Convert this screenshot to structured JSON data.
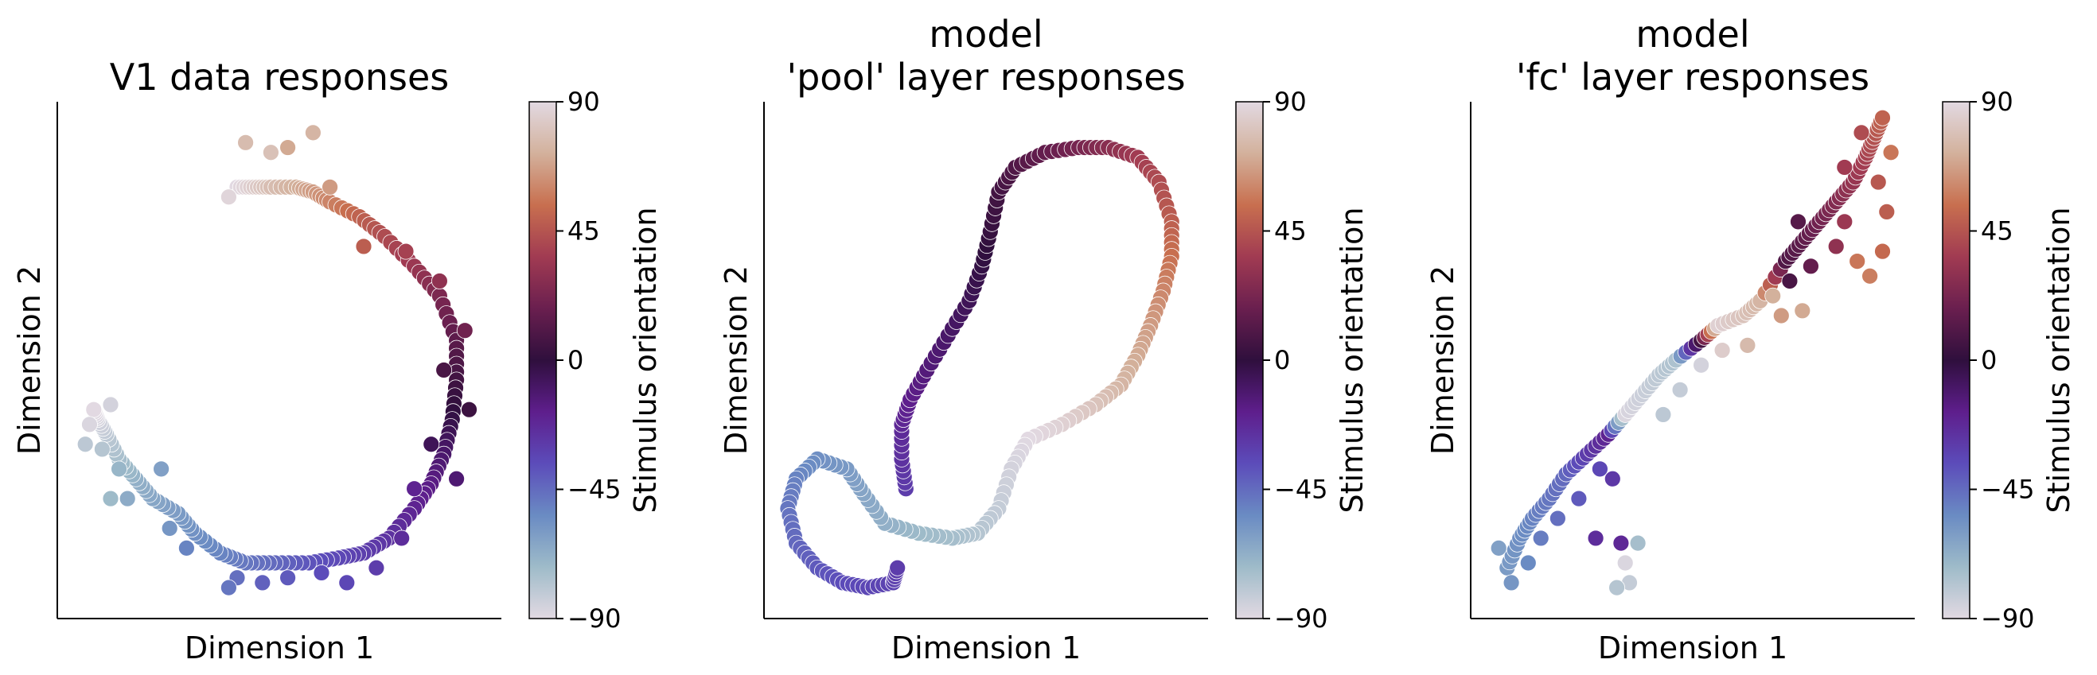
{
  "figure": {
    "colormap": [
      "#e2d9e2",
      "#9ebbc9",
      "#6a8bc3",
      "#5c4cba",
      "#5e1e8c",
      "#2f0f3d",
      "#6a1f4f",
      "#a13b52",
      "#c86f4f",
      "#d3b19c",
      "#e2d9e2"
    ],
    "marker_edge_color": "#ffffff"
  },
  "chart_data": [
    {
      "type": "scatter",
      "title": "V1 data responses",
      "xlabel": "Dimension 1",
      "ylabel": "Dimension 2",
      "xticks": [],
      "yticks": [],
      "colorbar": {
        "label": "Stimulus orientation",
        "ticks": [
          90,
          45,
          0,
          -45,
          -90
        ],
        "range": [
          -90,
          90
        ]
      },
      "xlim": [
        0,
        100
      ],
      "ylim": [
        0,
        100
      ],
      "path": [
        [
          40,
          85,
          90
        ],
        [
          44,
          85,
          84
        ],
        [
          48,
          85,
          78
        ],
        [
          54,
          85,
          72
        ],
        [
          58,
          84,
          66
        ],
        [
          62,
          82,
          60
        ],
        [
          69,
          79,
          50
        ],
        [
          75,
          75,
          42
        ],
        [
          82,
          69,
          34
        ],
        [
          88,
          63,
          24
        ],
        [
          92,
          54,
          14
        ],
        [
          92,
          46,
          6
        ],
        [
          91,
          38,
          -2
        ],
        [
          89,
          31,
          -10
        ],
        [
          86,
          25,
          -16
        ],
        [
          82,
          20,
          -20
        ],
        [
          76,
          14,
          -26
        ],
        [
          70,
          11,
          -30
        ],
        [
          64,
          10,
          -34
        ],
        [
          57,
          9,
          -38
        ],
        [
          49,
          9,
          -44
        ],
        [
          42,
          9,
          -48
        ],
        [
          36,
          11,
          -52
        ],
        [
          30,
          15,
          -56
        ],
        [
          26,
          19,
          -60
        ],
        [
          20,
          22,
          -64
        ],
        [
          16,
          26,
          -68
        ],
        [
          12,
          30,
          -74
        ],
        [
          9,
          35,
          -80
        ],
        [
          7,
          38,
          -86
        ],
        [
          6,
          40,
          -90
        ]
      ],
      "points": [
        [
          42,
          94,
          77
        ],
        [
          58,
          96,
          74
        ],
        [
          52,
          93,
          70
        ],
        [
          48,
          92,
          79
        ],
        [
          38,
          83,
          88
        ],
        [
          62,
          85,
          66
        ],
        [
          70,
          73,
          48
        ],
        [
          80,
          72,
          38
        ],
        [
          88,
          66,
          30
        ],
        [
          94,
          56,
          20
        ],
        [
          89,
          48,
          8
        ],
        [
          95,
          40,
          4
        ],
        [
          86,
          33,
          -6
        ],
        [
          92,
          26,
          -12
        ],
        [
          82,
          24,
          -20
        ],
        [
          79,
          14,
          -24
        ],
        [
          73,
          8,
          -30
        ],
        [
          66,
          5,
          -34
        ],
        [
          60,
          7,
          -36
        ],
        [
          52,
          6,
          -40
        ],
        [
          46,
          5,
          -42
        ],
        [
          40,
          6,
          -46
        ],
        [
          38,
          4,
          -48
        ],
        [
          28,
          12,
          -52
        ],
        [
          24,
          16,
          -58
        ],
        [
          14,
          22,
          -66
        ],
        [
          22,
          28,
          -62
        ],
        [
          12,
          28,
          -70
        ],
        [
          10,
          22,
          -72
        ],
        [
          5,
          37,
          -88
        ],
        [
          10,
          41,
          -86
        ],
        [
          4,
          33,
          -80
        ],
        [
          8,
          32,
          -78
        ]
      ]
    },
    {
      "type": "scatter",
      "title": "model\n'pool' layer responses",
      "xlabel": "Dimension 1",
      "ylabel": "Dimension 2",
      "xticks": [],
      "yticks": [],
      "colorbar": {
        "label": "Stimulus orientation",
        "ticks": [
          90,
          45,
          0,
          -45,
          -90
        ],
        "range": [
          -90,
          90
        ]
      },
      "xlim": [
        0,
        100
      ],
      "ylim": [
        0,
        100
      ],
      "path": [
        [
          31,
          24,
          -30
        ],
        [
          30,
          30,
          -26
        ],
        [
          30,
          37,
          -22
        ],
        [
          32,
          42,
          -18
        ],
        [
          36,
          48,
          -14
        ],
        [
          41,
          55,
          -10
        ],
        [
          46,
          62,
          -6
        ],
        [
          49,
          69,
          -2
        ],
        [
          51,
          76,
          2
        ],
        [
          53,
          84,
          6
        ],
        [
          57,
          89,
          10
        ],
        [
          64,
          92,
          16
        ],
        [
          72,
          93,
          22
        ],
        [
          79,
          93,
          28
        ],
        [
          86,
          91,
          36
        ],
        [
          91,
          86,
          42
        ],
        [
          94,
          78,
          48
        ],
        [
          94,
          71,
          54
        ],
        [
          92,
          64,
          60
        ],
        [
          89,
          57,
          66
        ],
        [
          86,
          51,
          70
        ],
        [
          82,
          45,
          74
        ],
        [
          76,
          41,
          80
        ],
        [
          68,
          37,
          86
        ],
        [
          60,
          34,
          90
        ],
        [
          56,
          28,
          -86
        ],
        [
          53,
          20,
          -82
        ],
        [
          48,
          15,
          -78
        ],
        [
          42,
          14,
          -74
        ],
        [
          34,
          15,
          -72
        ],
        [
          26,
          17,
          -68
        ],
        [
          21,
          23,
          -64
        ],
        [
          17,
          28,
          -60
        ],
        [
          10,
          30,
          -56
        ],
        [
          5,
          26,
          -52
        ],
        [
          3,
          20,
          -48
        ],
        [
          5,
          13,
          -44
        ],
        [
          10,
          8,
          -40
        ],
        [
          16,
          5,
          -36
        ],
        [
          22,
          4,
          -34
        ],
        [
          28,
          5,
          -32
        ],
        [
          29,
          8,
          -30
        ]
      ],
      "points": []
    },
    {
      "type": "scatter",
      "title": "model\n'fc' layer responses",
      "xlabel": "Dimension 1",
      "ylabel": "Dimension 2",
      "xticks": [],
      "yticks": [],
      "colorbar": {
        "label": "Stimulus orientation",
        "ticks": [
          90,
          45,
          0,
          -45,
          -90
        ],
        "range": [
          -90,
          90
        ]
      },
      "xlim": [
        0,
        100
      ],
      "ylim": [
        0,
        100
      ],
      "path": [
        [
          6,
          8,
          -60
        ],
        [
          9,
          14,
          -56
        ],
        [
          12,
          18,
          -52
        ],
        [
          16,
          22,
          -48
        ],
        [
          20,
          27,
          -44
        ],
        [
          25,
          31,
          -30
        ],
        [
          30,
          35,
          -20
        ],
        [
          34,
          39,
          -88
        ],
        [
          38,
          43,
          -84
        ],
        [
          42,
          47,
          -80
        ],
        [
          46,
          50,
          -76
        ],
        [
          52,
          54,
          6
        ],
        [
          56,
          57,
          86
        ],
        [
          62,
          59,
          80
        ],
        [
          66,
          62,
          74
        ],
        [
          72,
          70,
          10
        ],
        [
          76,
          74,
          14
        ],
        [
          80,
          78,
          20
        ],
        [
          84,
          82,
          26
        ],
        [
          88,
          86,
          32
        ],
        [
          91,
          91,
          38
        ],
        [
          93,
          95,
          44
        ],
        [
          95,
          99,
          50
        ]
      ],
      "points": [
        [
          4,
          12,
          -62
        ],
        [
          7,
          5,
          -58
        ],
        [
          11,
          9,
          -54
        ],
        [
          14,
          14,
          -50
        ],
        [
          18,
          18,
          -46
        ],
        [
          23,
          22,
          -40
        ],
        [
          28,
          28,
          -34
        ],
        [
          31,
          26,
          -28
        ],
        [
          27,
          14,
          -24
        ],
        [
          33,
          13,
          -22
        ],
        [
          34,
          9,
          -88
        ],
        [
          35,
          5,
          -82
        ],
        [
          32,
          4,
          -78
        ],
        [
          37,
          13,
          -74
        ],
        [
          43,
          39,
          -80
        ],
        [
          47,
          44,
          -82
        ],
        [
          52,
          49,
          -86
        ],
        [
          57,
          52,
          84
        ],
        [
          63,
          53,
          76
        ],
        [
          71,
          59,
          66
        ],
        [
          76,
          60,
          70
        ],
        [
          69,
          63,
          72
        ],
        [
          73,
          66,
          8
        ],
        [
          75,
          78,
          12
        ],
        [
          78,
          69,
          16
        ],
        [
          84,
          73,
          30
        ],
        [
          86,
          78,
          34
        ],
        [
          89,
          70,
          56
        ],
        [
          92,
          67,
          58
        ],
        [
          95,
          72,
          52
        ],
        [
          96,
          80,
          48
        ],
        [
          94,
          86,
          46
        ],
        [
          97,
          92,
          56
        ],
        [
          90,
          96,
          42
        ],
        [
          86,
          89,
          36
        ]
      ]
    }
  ]
}
